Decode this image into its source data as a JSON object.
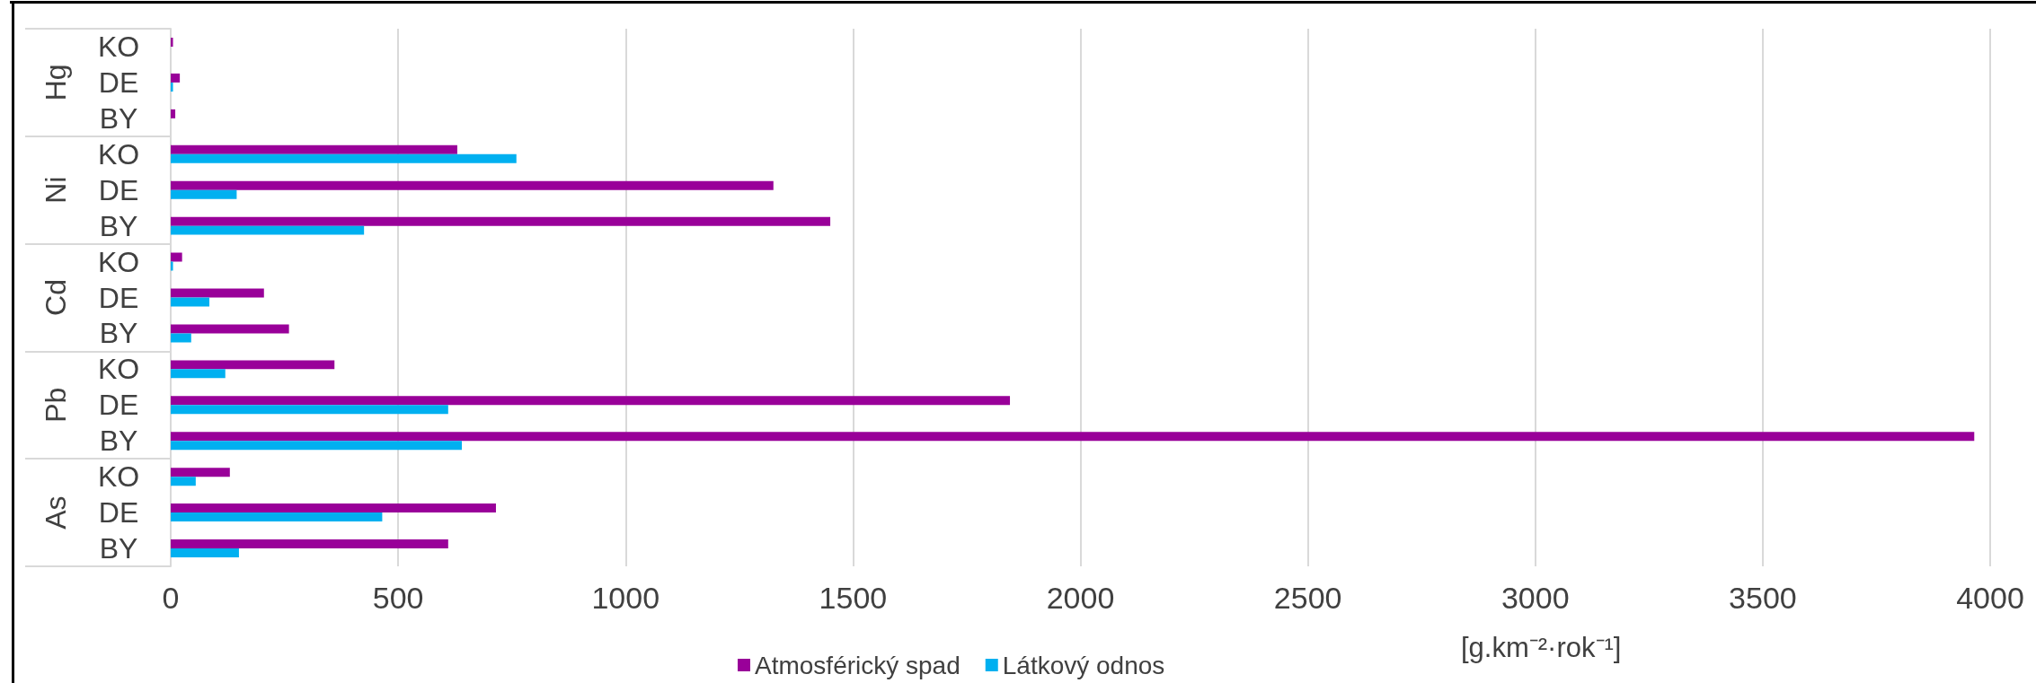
{
  "chart_data": {
    "type": "bar",
    "orientation": "horizontal",
    "categories": [
      "KO",
      "DE",
      "BY",
      "KO",
      "DE",
      "BY",
      "KO",
      "DE",
      "BY",
      "KO",
      "DE",
      "BY",
      "KO",
      "DE",
      "BY"
    ],
    "annotations": [
      "Hg",
      "Ni",
      "Cd",
      "Pb",
      "As"
    ],
    "series": [
      {
        "name": "Atmosférický spad",
        "color": "#990099",
        "values": [
          5,
          20,
          10,
          630,
          1325,
          1450,
          25,
          205,
          260,
          360,
          1845,
          3965,
          130,
          715,
          610
        ]
      },
      {
        "name": "Látkový odnos",
        "color": "#00b0f0",
        "values": [
          0,
          5,
          0,
          760,
          145,
          425,
          5,
          85,
          45,
          120,
          610,
          640,
          55,
          465,
          150
        ]
      }
    ],
    "xlabel": "[g.km⁻²·rok⁻¹]",
    "xlim": [
      0,
      4000
    ],
    "xticks": [
      0,
      500,
      1000,
      1500,
      2000,
      2500,
      3000,
      3500,
      4000
    ],
    "grid": "x",
    "legend": "bottom"
  }
}
